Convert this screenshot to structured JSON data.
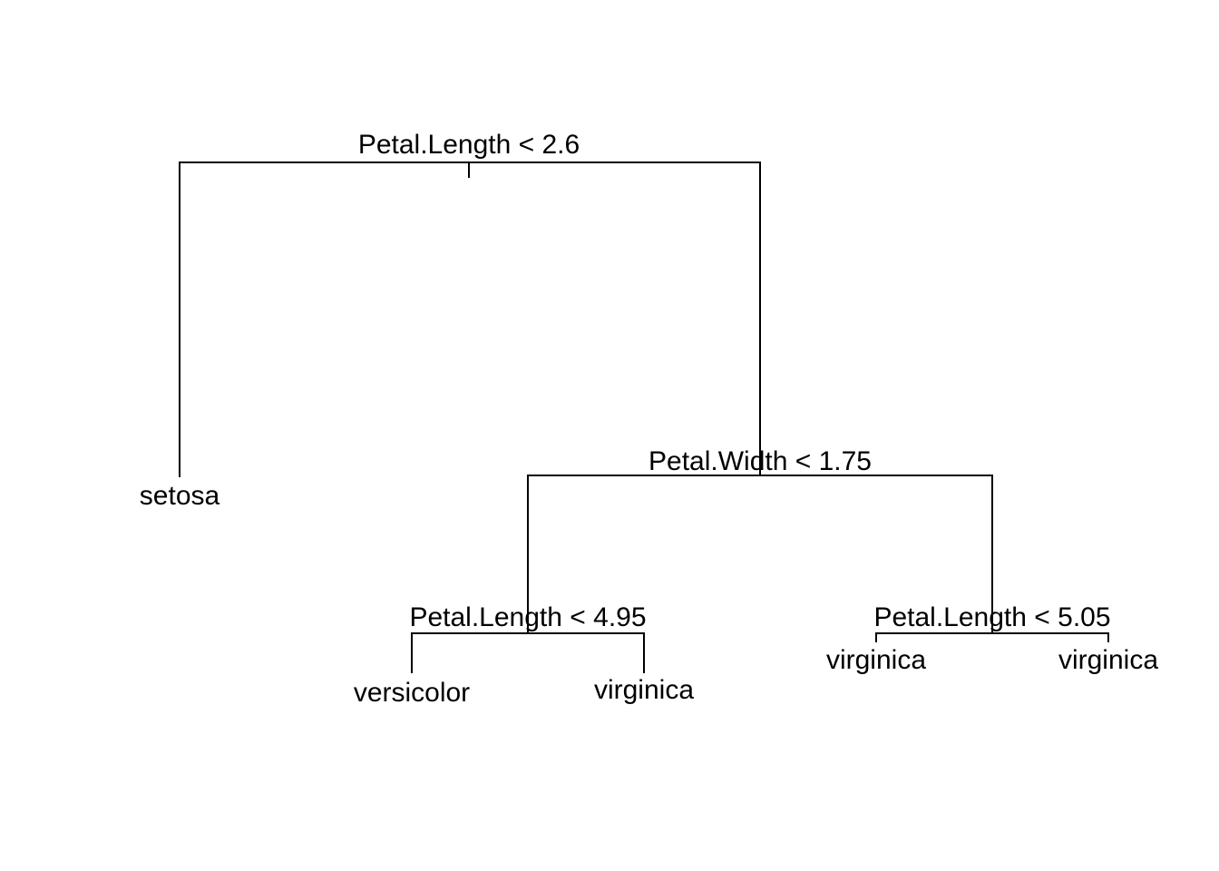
{
  "tree": {
    "root": {
      "split": "Petal.Length < 2.6",
      "left": {
        "leaf": "setosa"
      },
      "right": {
        "split": "Petal.Width < 1.75",
        "left": {
          "split": "Petal.Length < 4.95",
          "left": {
            "leaf": "versicolor"
          },
          "right": {
            "leaf": "virginica"
          }
        },
        "right": {
          "split": "Petal.Length < 5.05",
          "left": {
            "leaf": "virginica"
          },
          "right": {
            "leaf": "virginica"
          }
        }
      }
    }
  }
}
